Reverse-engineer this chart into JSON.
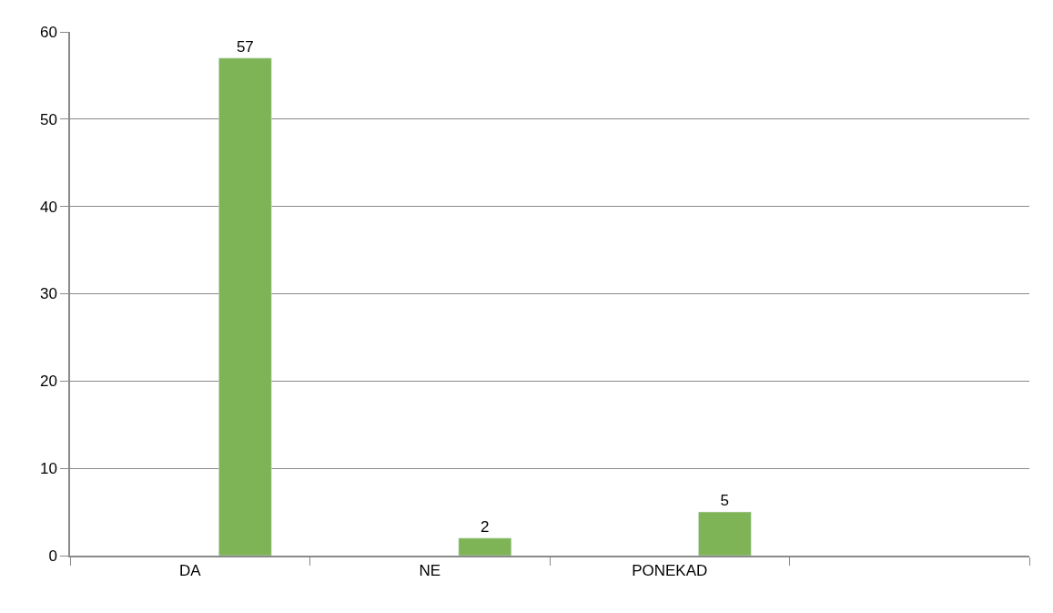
{
  "chart_data": {
    "type": "bar",
    "categories": [
      "DA",
      "NE",
      "PONEKAD",
      null
    ],
    "values": [
      57,
      2,
      5,
      null
    ],
    "color": "#7eb356",
    "ylim": [
      0,
      60
    ],
    "yticks": [
      0,
      10,
      20,
      30,
      40,
      50,
      60
    ],
    "grid": "y",
    "data_labels": true
  }
}
